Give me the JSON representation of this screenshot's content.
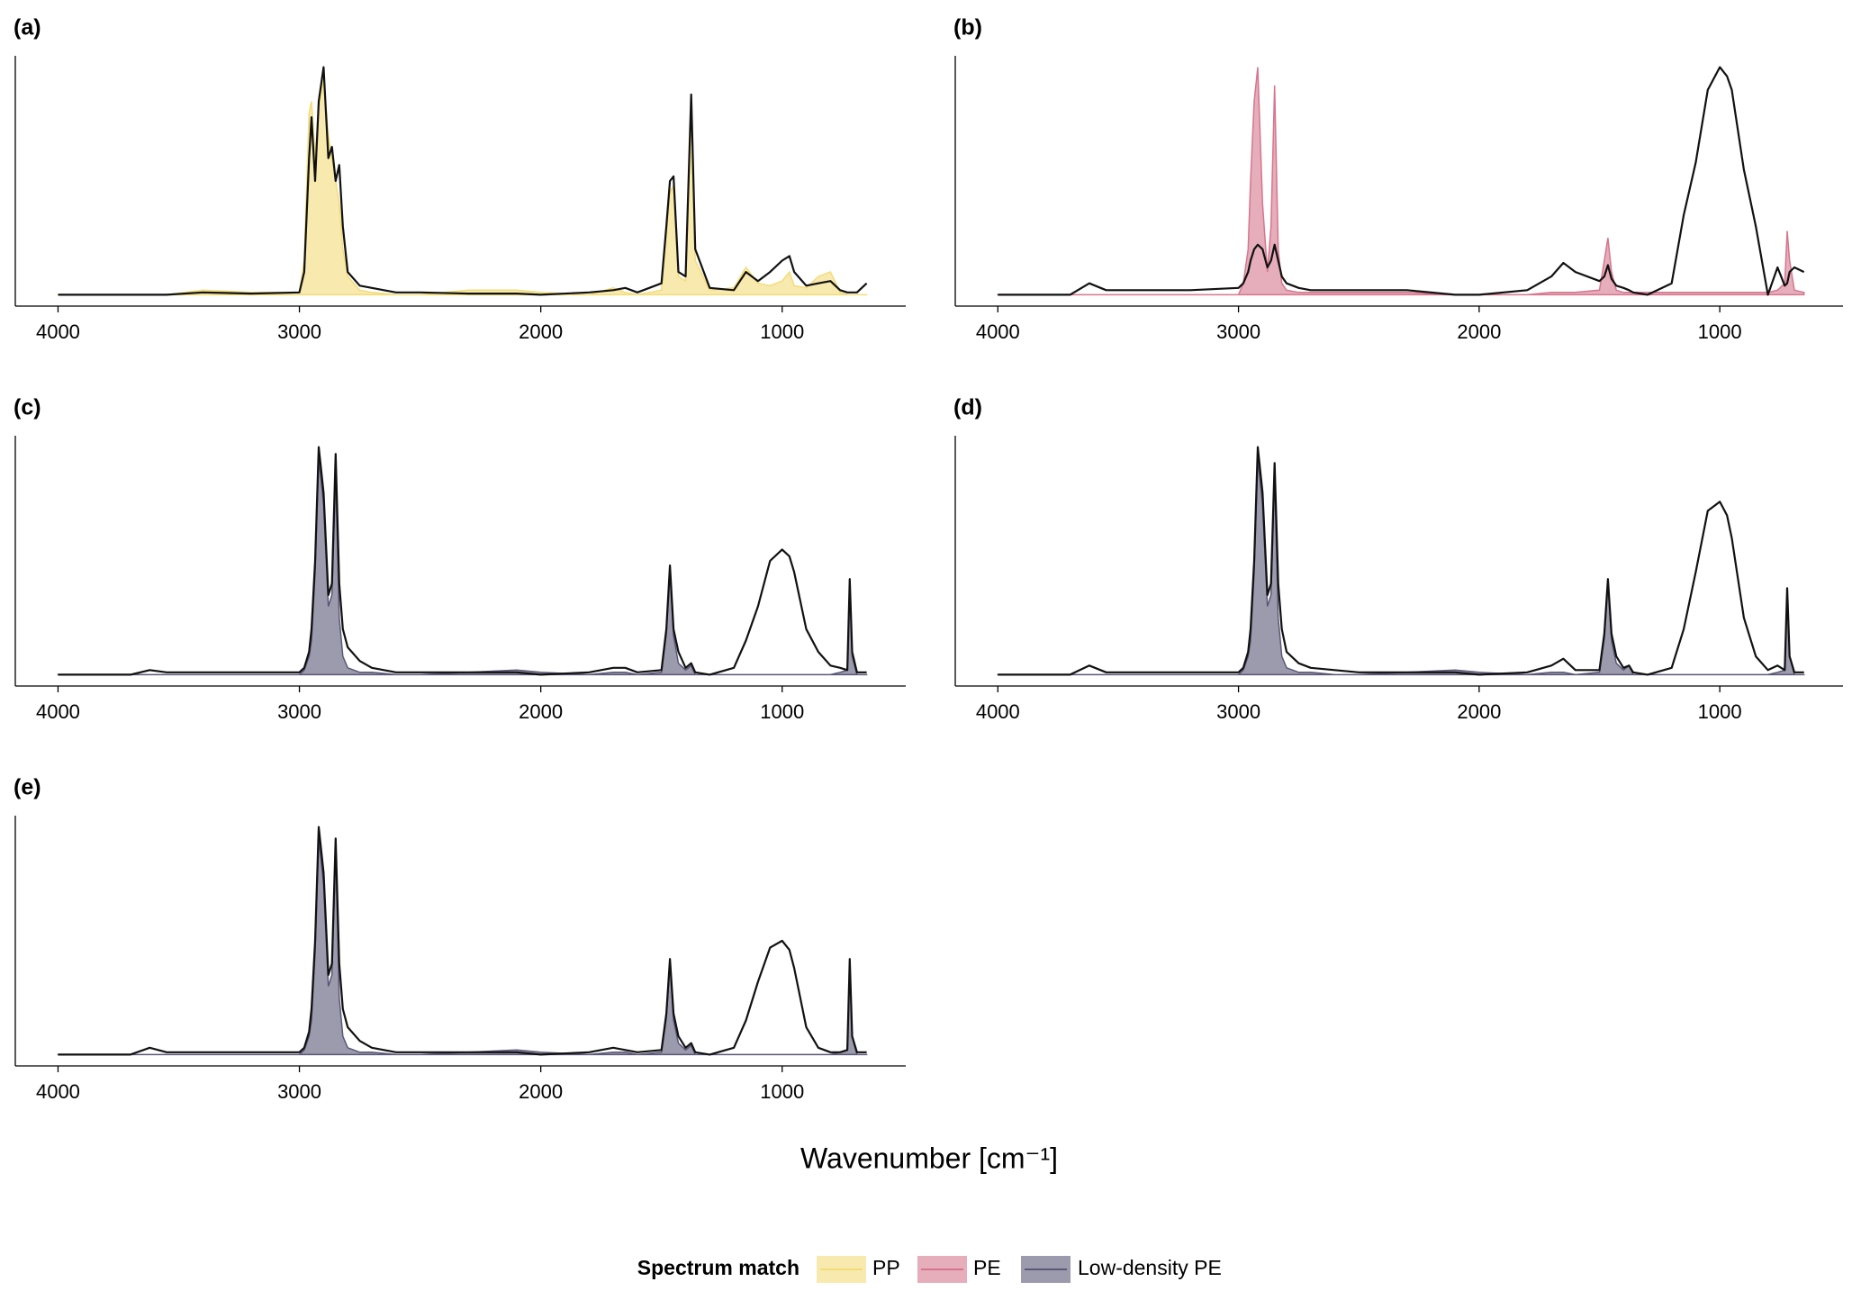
{
  "chart_data": [
    {
      "type": "spectrum",
      "title": "(a)",
      "x": [
        4000,
        3700,
        3620,
        3550,
        3400,
        3200,
        3000,
        2980,
        2960,
        2950,
        2935,
        2920,
        2900,
        2880,
        2865,
        2850,
        2835,
        2820,
        2800,
        2750,
        2700,
        2600,
        2500,
        2300,
        2100,
        2000,
        1800,
        1700,
        1650,
        1600,
        1500,
        1480,
        1465,
        1450,
        1430,
        1400,
        1377,
        1360,
        1300,
        1200,
        1150,
        1100,
        1050,
        1000,
        970,
        950,
        900,
        850,
        800,
        760,
        730,
        720,
        710,
        690,
        650
      ],
      "xlim": [
        4177,
        488
      ],
      "xticks": [
        4000,
        3000,
        2000,
        1000
      ],
      "ylim": [
        -0.05,
        1.05
      ],
      "series": [
        {
          "name": "PP",
          "type": "area",
          "color": "#f3dc78",
          "values": [
            0,
            0,
            0,
            0,
            0.02,
            0.01,
            0.01,
            0.15,
            0.8,
            0.85,
            0.6,
            0.82,
            0.95,
            0.7,
            0.6,
            0.5,
            0.4,
            0.2,
            0.08,
            0.02,
            0.01,
            0,
            0,
            0.02,
            0.02,
            0.01,
            0,
            0.03,
            0.01,
            0,
            0.02,
            0.25,
            0.45,
            0.48,
            0.08,
            0.06,
            0.79,
            0.15,
            0.02,
            0.03,
            0.12,
            0.05,
            0.04,
            0.06,
            0.1,
            0.04,
            0.03,
            0.08,
            0.1,
            0.01,
            0,
            0,
            0,
            0,
            0
          ]
        },
        {
          "type": "line",
          "color": "#111111",
          "values": [
            0,
            0,
            0,
            0,
            0.01,
            0.005,
            0.01,
            0.1,
            0.6,
            0.78,
            0.5,
            0.85,
            1.0,
            0.6,
            0.65,
            0.5,
            0.57,
            0.3,
            0.1,
            0.04,
            0.03,
            0.01,
            0.01,
            0.005,
            0.005,
            0,
            0.01,
            0.02,
            0.03,
            0.01,
            0.05,
            0.3,
            0.5,
            0.52,
            0.1,
            0.08,
            0.88,
            0.2,
            0.03,
            0.02,
            0.1,
            0.06,
            0.1,
            0.15,
            0.17,
            0.1,
            0.04,
            0.05,
            0.06,
            0.02,
            0.01,
            0.01,
            0.01,
            0.01,
            0.05
          ]
        }
      ]
    },
    {
      "type": "spectrum",
      "title": "(b)",
      "x": [
        4000,
        3700,
        3620,
        3550,
        3400,
        3200,
        3000,
        2980,
        2960,
        2950,
        2935,
        2920,
        2900,
        2880,
        2865,
        2850,
        2835,
        2820,
        2800,
        2750,
        2700,
        2600,
        2500,
        2300,
        2100,
        2000,
        1800,
        1700,
        1650,
        1600,
        1500,
        1480,
        1465,
        1450,
        1430,
        1400,
        1377,
        1360,
        1300,
        1200,
        1150,
        1100,
        1050,
        1000,
        970,
        950,
        900,
        850,
        800,
        760,
        730,
        720,
        710,
        690,
        650
      ],
      "xlim": [
        4177,
        488
      ],
      "xticks": [
        4000,
        3000,
        2000,
        1000
      ],
      "ylim": [
        -0.05,
        1.05
      ],
      "series": [
        {
          "name": "PE",
          "type": "area",
          "color": "#d6768e",
          "values": [
            0,
            0,
            0,
            0,
            0,
            0,
            0,
            0.05,
            0.2,
            0.5,
            0.85,
            1.0,
            0.4,
            0.1,
            0.3,
            0.92,
            0.2,
            0.05,
            0.02,
            0.01,
            0.01,
            0.01,
            0.01,
            0.01,
            0,
            0,
            0,
            0.01,
            0.01,
            0.01,
            0.02,
            0.15,
            0.25,
            0.1,
            0.02,
            0.01,
            0.01,
            0.01,
            0.01,
            0.01,
            0.01,
            0.01,
            0.01,
            0.01,
            0.01,
            0.01,
            0.01,
            0.01,
            0.01,
            0.02,
            0.05,
            0.28,
            0.15,
            0.02,
            0.01
          ]
        },
        {
          "type": "line",
          "color": "#111111",
          "values": [
            0,
            0,
            0.05,
            0.02,
            0.02,
            0.02,
            0.03,
            0.05,
            0.1,
            0.15,
            0.2,
            0.22,
            0.2,
            0.12,
            0.15,
            0.22,
            0.15,
            0.08,
            0.05,
            0.03,
            0.02,
            0.02,
            0.02,
            0.02,
            0,
            0,
            0.02,
            0.08,
            0.14,
            0.1,
            0.06,
            0.08,
            0.13,
            0.07,
            0.04,
            0.03,
            0.02,
            0.01,
            0,
            0.05,
            0.35,
            0.58,
            0.9,
            1.0,
            0.96,
            0.9,
            0.55,
            0.3,
            0,
            0.12,
            0.04,
            0.05,
            0.1,
            0.12,
            0.1
          ]
        }
      ]
    },
    {
      "type": "spectrum",
      "title": "(c)",
      "x": [
        4000,
        3700,
        3620,
        3550,
        3400,
        3200,
        3000,
        2980,
        2960,
        2950,
        2935,
        2920,
        2900,
        2880,
        2865,
        2850,
        2835,
        2820,
        2800,
        2750,
        2700,
        2600,
        2500,
        2300,
        2100,
        2000,
        1800,
        1700,
        1650,
        1600,
        1500,
        1480,
        1465,
        1450,
        1430,
        1400,
        1377,
        1360,
        1300,
        1200,
        1150,
        1100,
        1050,
        1000,
        970,
        950,
        900,
        850,
        800,
        760,
        730,
        720,
        710,
        690,
        650
      ],
      "xlim": [
        4177,
        488
      ],
      "xticks": [
        4000,
        3000,
        2000,
        1000
      ],
      "ylim": [
        -0.05,
        1.05
      ],
      "series": [
        {
          "name": "Low-density PE",
          "type": "area",
          "color": "#5a5777",
          "values": [
            0,
            0,
            0,
            0,
            0,
            0,
            0,
            0.02,
            0.08,
            0.15,
            0.45,
            0.95,
            0.75,
            0.3,
            0.35,
            0.88,
            0.25,
            0.08,
            0.03,
            0.01,
            0.01,
            0,
            0,
            0.01,
            0.02,
            0.01,
            0,
            0.01,
            0.01,
            0,
            0.01,
            0.18,
            0.45,
            0.17,
            0.05,
            0.02,
            0.04,
            0,
            0,
            0,
            0,
            0,
            0,
            0,
            0,
            0,
            0,
            0,
            0,
            0.01,
            0.02,
            0.4,
            0.08,
            0,
            0
          ]
        },
        {
          "type": "line",
          "color": "#111111",
          "values": [
            0,
            0,
            0.02,
            0.01,
            0.01,
            0.01,
            0.01,
            0.03,
            0.1,
            0.2,
            0.5,
            1.0,
            0.8,
            0.35,
            0.4,
            0.97,
            0.4,
            0.2,
            0.12,
            0.06,
            0.03,
            0.01,
            0.01,
            0.01,
            0.01,
            0,
            0.01,
            0.03,
            0.03,
            0.01,
            0.02,
            0.2,
            0.48,
            0.2,
            0.1,
            0.03,
            0.05,
            0.01,
            0,
            0.03,
            0.15,
            0.3,
            0.5,
            0.55,
            0.52,
            0.45,
            0.2,
            0.1,
            0.04,
            0.03,
            0.02,
            0.42,
            0.1,
            0.01,
            0.01
          ]
        }
      ]
    },
    {
      "type": "spectrum",
      "title": "(d)",
      "x": [
        4000,
        3700,
        3620,
        3550,
        3400,
        3200,
        3000,
        2980,
        2960,
        2950,
        2935,
        2920,
        2900,
        2880,
        2865,
        2850,
        2835,
        2820,
        2800,
        2750,
        2700,
        2600,
        2500,
        2300,
        2100,
        2000,
        1800,
        1700,
        1650,
        1600,
        1500,
        1480,
        1465,
        1450,
        1430,
        1400,
        1377,
        1360,
        1300,
        1200,
        1150,
        1100,
        1050,
        1000,
        970,
        950,
        900,
        850,
        800,
        760,
        730,
        720,
        710,
        690,
        650
      ],
      "xlim": [
        4177,
        488
      ],
      "xticks": [
        4000,
        3000,
        2000,
        1000
      ],
      "ylim": [
        -0.05,
        1.05
      ],
      "series": [
        {
          "type": "area",
          "color": "#5a5777",
          "values": [
            0,
            0,
            0,
            0,
            0,
            0,
            0,
            0.02,
            0.08,
            0.15,
            0.45,
            0.95,
            0.75,
            0.3,
            0.35,
            0.88,
            0.25,
            0.08,
            0.03,
            0.01,
            0.01,
            0,
            0,
            0.01,
            0.02,
            0.01,
            0,
            0.01,
            0.01,
            0,
            0.01,
            0.16,
            0.4,
            0.15,
            0.05,
            0.02,
            0.04,
            0,
            0,
            0,
            0,
            0,
            0,
            0,
            0,
            0,
            0,
            0,
            0,
            0.01,
            0.02,
            0.38,
            0.08,
            0,
            0
          ]
        },
        {
          "type": "line",
          "color": "#111111",
          "values": [
            0,
            0,
            0.04,
            0.01,
            0.01,
            0.01,
            0.01,
            0.03,
            0.1,
            0.2,
            0.5,
            1.0,
            0.8,
            0.35,
            0.4,
            0.93,
            0.4,
            0.2,
            0.1,
            0.05,
            0.03,
            0.02,
            0.01,
            0.01,
            0.01,
            0,
            0.01,
            0.04,
            0.07,
            0.02,
            0.02,
            0.18,
            0.42,
            0.18,
            0.08,
            0.03,
            0.04,
            0.01,
            0,
            0.03,
            0.2,
            0.45,
            0.72,
            0.76,
            0.7,
            0.6,
            0.25,
            0.08,
            0.02,
            0.04,
            0.02,
            0.38,
            0.08,
            0.01,
            0.01
          ]
        }
      ]
    },
    {
      "type": "spectrum",
      "title": "(e)",
      "x": [
        4000,
        3700,
        3620,
        3550,
        3400,
        3200,
        3000,
        2980,
        2960,
        2950,
        2935,
        2920,
        2900,
        2880,
        2865,
        2850,
        2835,
        2820,
        2800,
        2750,
        2700,
        2600,
        2500,
        2300,
        2100,
        2000,
        1800,
        1700,
        1650,
        1600,
        1500,
        1480,
        1465,
        1450,
        1430,
        1400,
        1377,
        1360,
        1300,
        1200,
        1150,
        1100,
        1050,
        1000,
        970,
        950,
        900,
        850,
        800,
        760,
        730,
        720,
        710,
        690,
        650
      ],
      "xlim": [
        4177,
        488
      ],
      "xticks": [
        4000,
        3000,
        2000,
        1000
      ],
      "ylim": [
        -0.05,
        1.05
      ],
      "series": [
        {
          "type": "area",
          "color": "#5a5777",
          "values": [
            0,
            0,
            0,
            0,
            0,
            0,
            0,
            0.02,
            0.08,
            0.15,
            0.45,
            0.95,
            0.75,
            0.3,
            0.35,
            0.9,
            0.25,
            0.08,
            0.03,
            0.01,
            0.01,
            0,
            0,
            0.01,
            0.02,
            0.01,
            0,
            0.01,
            0.01,
            0,
            0.01,
            0.16,
            0.4,
            0.15,
            0.05,
            0.02,
            0.04,
            0,
            0,
            0,
            0,
            0,
            0,
            0,
            0,
            0,
            0,
            0,
            0,
            0.01,
            0.02,
            0.4,
            0.08,
            0,
            0
          ]
        },
        {
          "type": "line",
          "color": "#111111",
          "values": [
            0,
            0,
            0.03,
            0.01,
            0.01,
            0.01,
            0.01,
            0.03,
            0.1,
            0.2,
            0.5,
            1.0,
            0.8,
            0.35,
            0.4,
            0.95,
            0.4,
            0.2,
            0.12,
            0.06,
            0.03,
            0.01,
            0.01,
            0.01,
            0.01,
            0,
            0.01,
            0.03,
            0.02,
            0.01,
            0.02,
            0.18,
            0.42,
            0.18,
            0.08,
            0.03,
            0.05,
            0.01,
            0,
            0.03,
            0.15,
            0.32,
            0.47,
            0.5,
            0.46,
            0.38,
            0.12,
            0.03,
            0.01,
            0.01,
            0.02,
            0.42,
            0.08,
            0.01,
            0.01
          ]
        }
      ]
    }
  ],
  "xlabel": "Wavenumber [cm⁻¹]",
  "legend_title": "Spectrum match"
}
